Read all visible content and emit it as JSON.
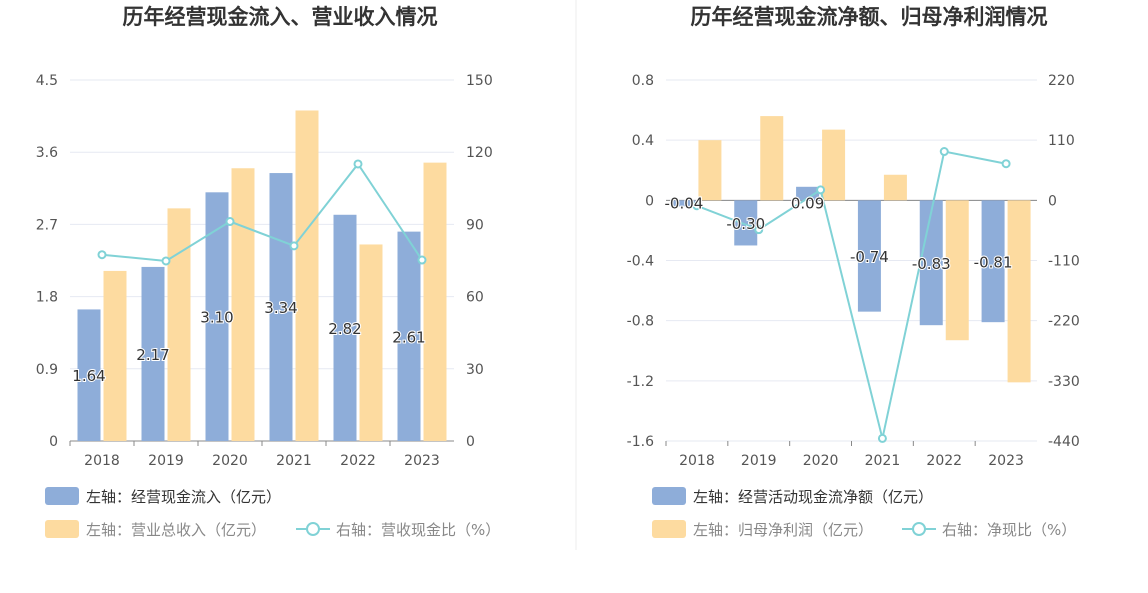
{
  "colors": {
    "bar1": "#8eadd9",
    "bar2": "#fddba0",
    "line": "#80d2d6",
    "grid": "#e6e9f2",
    "divider": "#eeeeee"
  },
  "chart_data": [
    {
      "type": "bar",
      "title": "历年经营现金流入、营业收入情况",
      "categories": [
        "2018",
        "2019",
        "2020",
        "2021",
        "2022",
        "2023"
      ],
      "left_axis": {
        "ticks": [
          "4.5",
          "3.6",
          "2.7",
          "1.8",
          "0.9",
          "0"
        ],
        "ylim": [
          0,
          4.5
        ]
      },
      "right_axis": {
        "ticks": [
          "150",
          "120",
          "90",
          "60",
          "30",
          "0"
        ],
        "ylim": [
          0,
          150
        ]
      },
      "series": [
        {
          "name": "左轴：经营现金流入（亿元）",
          "type": "bar",
          "axis": "left",
          "values": [
            1.64,
            2.17,
            3.1,
            3.34,
            2.82,
            2.61
          ],
          "labels": [
            "1.64",
            "2.17",
            "3.10",
            "3.34",
            "2.82",
            "2.61"
          ]
        },
        {
          "name": "左轴：营业总收入（亿元）",
          "type": "bar",
          "axis": "left",
          "values": [
            2.12,
            2.9,
            3.4,
            4.12,
            2.45,
            3.47
          ]
        },
        {
          "name": "右轴：营收现金比（%）",
          "type": "line",
          "axis": "right",
          "values": [
            77.4,
            74.8,
            91.2,
            81.1,
            115.1,
            75.2
          ]
        }
      ]
    },
    {
      "type": "bar",
      "title": "历年经营现金流净额、归母净利润情况",
      "categories": [
        "2018",
        "2019",
        "2020",
        "2021",
        "2022",
        "2023"
      ],
      "left_axis": {
        "ticks": [
          "0.8",
          "0.4",
          "0",
          "-0.4",
          "-0.8",
          "-1.2",
          "-1.6"
        ],
        "ylim": [
          -1.6,
          0.8
        ]
      },
      "right_axis": {
        "ticks": [
          "220",
          "110",
          "0",
          "-110",
          "-220",
          "-330",
          "-440"
        ],
        "ylim": [
          -440,
          220
        ]
      },
      "series": [
        {
          "name": "左轴：经营活动现金流净额（亿元）",
          "type": "bar",
          "axis": "left",
          "values": [
            -0.04,
            -0.3,
            0.09,
            -0.74,
            -0.83,
            -0.81
          ],
          "labels": [
            "-0.04",
            "-0.30",
            "0.09",
            "-0.74",
            "-0.83",
            "-0.81"
          ]
        },
        {
          "name": "左轴：归母净利润（亿元）",
          "type": "bar",
          "axis": "left",
          "values": [
            0.4,
            0.56,
            0.47,
            0.17,
            -0.93,
            -1.21
          ]
        },
        {
          "name": "右轴：净现比（%）",
          "type": "line",
          "axis": "right",
          "values": [
            -10.0,
            -53.6,
            19.1,
            -435.3,
            89.2,
            66.9
          ]
        }
      ]
    }
  ]
}
